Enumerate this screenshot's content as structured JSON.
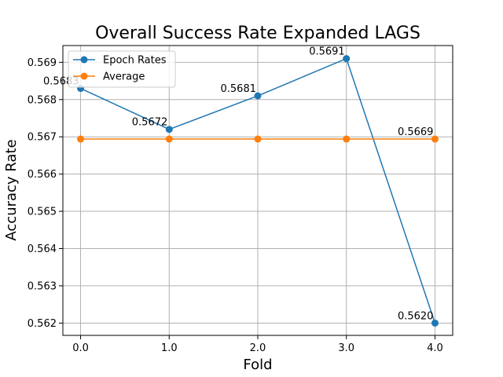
{
  "chart_data": {
    "type": "line",
    "title": "Overall Success Rate Expanded LAGS",
    "xlabel": "Fold",
    "ylabel": "Accuracy Rate",
    "x": [
      0,
      1,
      2,
      3,
      4
    ],
    "x_tick_labels": [
      "0.0",
      "1.0",
      "2.0",
      "3.0",
      "4.0"
    ],
    "y_ticks": [
      0.562,
      0.563,
      0.564,
      0.565,
      0.566,
      0.567,
      0.568,
      0.569
    ],
    "y_tick_labels": [
      "0.562",
      "0.563",
      "0.564",
      "0.565",
      "0.566",
      "0.567",
      "0.568",
      "0.569"
    ],
    "xlim": [
      -0.2,
      4.2
    ],
    "ylim": [
      0.56167,
      0.56945
    ],
    "grid": true,
    "legend_position": "top-left",
    "series": [
      {
        "name": "Epoch Rates",
        "color": "#1f77b4",
        "values": [
          0.5683,
          0.5672,
          0.5681,
          0.5691,
          0.562
        ],
        "data_labels": [
          "0.5683",
          "0.5672",
          "0.5681",
          "0.5691",
          "0.5620"
        ]
      },
      {
        "name": "Average",
        "color": "#ff7f0e",
        "values": [
          0.56694,
          0.56694,
          0.56694,
          0.56694,
          0.56694
        ],
        "data_labels": [
          "",
          "",
          "",
          "",
          "0.5669"
        ]
      }
    ]
  }
}
